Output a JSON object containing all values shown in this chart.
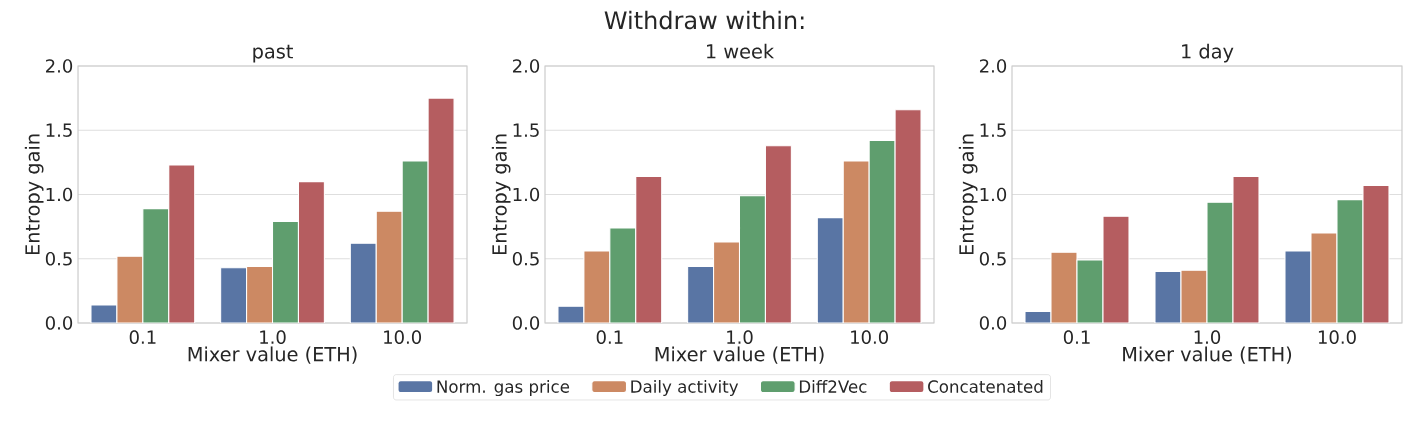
{
  "chart_data": [
    {
      "type": "bar",
      "title": "past",
      "xlabel": "Mixer value (ETH)",
      "ylabel": "Entropy gain",
      "annotations": [
        "Withdraw within:"
      ],
      "categories": [
        "0.1",
        "1.0",
        "10.0"
      ],
      "ylim": [
        0,
        2
      ],
      "yticks": [
        {
          "value": 0,
          "label": "0.0"
        },
        {
          "value": 0.5,
          "label": "0.5"
        },
        {
          "value": 1,
          "label": "1.0"
        },
        {
          "value": 1.5,
          "label": "1.5"
        },
        {
          "value": 2,
          "label": "2.0"
        }
      ],
      "grid": "y",
      "series": [
        {
          "color": "#5975a4",
          "values": [
            0.14,
            0.43,
            0.62
          ]
        },
        {
          "color": "#cc8963",
          "values": [
            0.52,
            0.44,
            0.87
          ]
        },
        {
          "color": "#5f9e6e",
          "values": [
            0.89,
            0.79,
            1.26
          ]
        },
        {
          "color": "#b55d60",
          "values": [
            1.23,
            1.1,
            1.75
          ]
        }
      ]
    },
    {
      "type": "bar",
      "title": "1 week",
      "xlabel": "Mixer value (ETH)",
      "ylabel": "Entropy gain",
      "categories": [
        "0.1",
        "1.0",
        "10.0"
      ],
      "ylim": [
        0,
        2
      ],
      "yticks": [
        {
          "value": 0,
          "label": "0.0"
        },
        {
          "value": 0.5,
          "label": "0.5"
        },
        {
          "value": 1,
          "label": "1.0"
        },
        {
          "value": 1.5,
          "label": "1.5"
        },
        {
          "value": 2,
          "label": "2.0"
        }
      ],
      "grid": "y",
      "legend": "bottom",
      "series": [
        {
          "name": "Norm. gas price",
          "color": "#5975a4",
          "values": [
            0.13,
            0.44,
            0.82
          ]
        },
        {
          "name": "Daily activity",
          "color": "#cc8963",
          "values": [
            0.56,
            0.63,
            1.26
          ]
        },
        {
          "name": "Diff2Vec",
          "color": "#5f9e6e",
          "values": [
            0.74,
            0.99,
            1.42
          ]
        },
        {
          "name": "Concatenated",
          "color": "#b55d60",
          "values": [
            1.14,
            1.38,
            1.66
          ]
        }
      ]
    },
    {
      "type": "bar",
      "title": "1 day",
      "xlabel": "Mixer value (ETH)",
      "ylabel": "Entropy gain",
      "categories": [
        "0.1",
        "1.0",
        "10.0"
      ],
      "ylim": [
        0,
        2
      ],
      "yticks": [
        {
          "value": 0,
          "label": "0.0"
        },
        {
          "value": 0.5,
          "label": "0.5"
        },
        {
          "value": 1,
          "label": "1.0"
        },
        {
          "value": 1.5,
          "label": "1.5"
        },
        {
          "value": 2,
          "label": "2.0"
        }
      ],
      "grid": "y",
      "series": [
        {
          "color": "#5975a4",
          "values": [
            0.09,
            0.4,
            0.56
          ]
        },
        {
          "color": "#cc8963",
          "values": [
            0.55,
            0.41,
            0.7
          ]
        },
        {
          "color": "#5f9e6e",
          "values": [
            0.49,
            0.94,
            0.96
          ]
        },
        {
          "color": "#b55d60",
          "values": [
            0.83,
            1.14,
            1.07
          ]
        }
      ]
    }
  ]
}
